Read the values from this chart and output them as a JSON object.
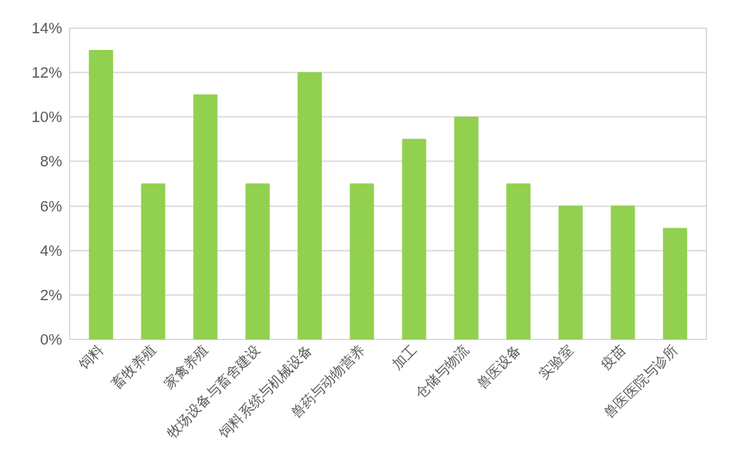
{
  "chart_data": {
    "type": "bar",
    "categories": [
      "饲料",
      "畜牧养殖",
      "家禽养殖",
      "牧场设备与畜舍建设",
      "饲料系统与机械设备",
      "兽药与动物营养",
      "加工",
      "仓储与物流",
      "兽医设备",
      "实验室",
      "疫苗",
      "兽医医院与诊所"
    ],
    "values": [
      13,
      7,
      11,
      7,
      12,
      7,
      9,
      10,
      7,
      6,
      6,
      5
    ],
    "color": "#92d050",
    "ylim": [
      0,
      14
    ],
    "yticks": [
      {
        "value": 0,
        "label": "0%"
      },
      {
        "value": 2,
        "label": "2%"
      },
      {
        "value": 4,
        "label": "4%"
      },
      {
        "value": 6,
        "label": "6%"
      },
      {
        "value": 8,
        "label": "8%"
      },
      {
        "value": 10,
        "label": "10%"
      },
      {
        "value": 12,
        "label": "12%"
      },
      {
        "value": 14,
        "label": "14%"
      }
    ],
    "grid": "y"
  }
}
